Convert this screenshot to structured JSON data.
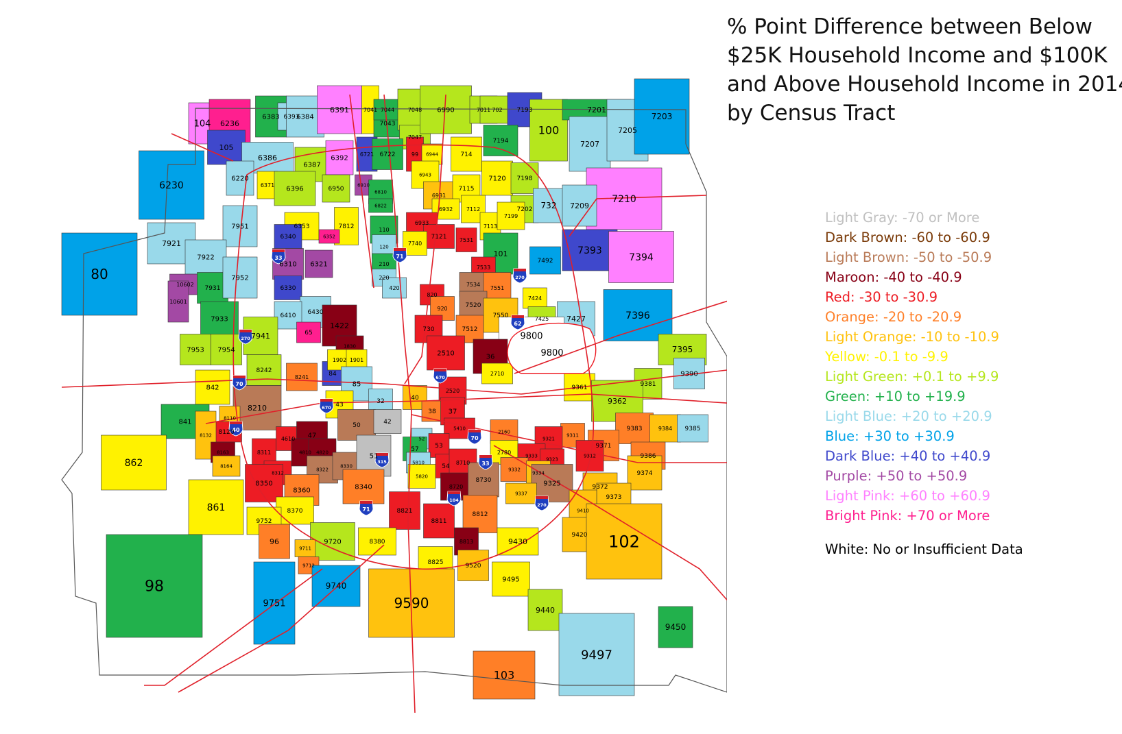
{
  "title_lines": [
    "% Point Difference between Below",
    "$25K Household Income and $100K",
    "and Above Household Income in 2014",
    "by Census Tract"
  ],
  "legend": [
    {
      "label": "Light Gray: -70 or More",
      "color": "#c0c0c0"
    },
    {
      "label": "Dark Brown: -60 to -60.9",
      "color": "#7a3a08"
    },
    {
      "label": "Light Brown: -50 to -50.9",
      "color": "#b97a57"
    },
    {
      "label": "Maroon: -40 to -40.9",
      "color": "#880015"
    },
    {
      "label": "Red: -30 to -30.9",
      "color": "#ed1c24"
    },
    {
      "label": "Orange: -20 to -20.9",
      "color": "#ff7f27"
    },
    {
      "label": "Light Orange: -10 to -10.9",
      "color": "#ffc20e"
    },
    {
      "label": "Yellow: -0.1 to -9.9",
      "color": "#fff200"
    },
    {
      "label": "Light Green: +0.1 to +9.9",
      "color": "#b5e61d"
    },
    {
      "label": "Green: +10 to +19.9",
      "color": "#22b14c"
    },
    {
      "label": "Light Blue: +20 to +20.9",
      "color": "#99d9ea"
    },
    {
      "label": "Blue: +30 to +30.9",
      "color": "#00a2e8"
    },
    {
      "label": "Dark Blue: +40 to +40.9",
      "color": "#3f48cc"
    },
    {
      "label": "Purple: +50 to +50.9",
      "color": "#a349a4"
    },
    {
      "label": "Light Pink: +60 to +60.9",
      "color": "#ff80ff"
    },
    {
      "label": "Bright Pink: +70 or More",
      "color": "#ff1f8f"
    }
  ],
  "legend_white": {
    "label": "White: No or Insufficient Data",
    "color": "#000000"
  },
  "highways": [
    "70",
    "71",
    "270",
    "670",
    "315",
    "33",
    "62",
    "104"
  ],
  "tracts": [
    {
      "id": "104",
      "c": "#ff80ff"
    },
    {
      "id": "6236",
      "c": "#ff1f8f"
    },
    {
      "id": "6383",
      "c": "#22b14c"
    },
    {
      "id": "6393",
      "c": "#99d9ea"
    },
    {
      "id": "6384",
      "c": "#99d9ea"
    },
    {
      "id": "6391",
      "c": "#ff80ff"
    },
    {
      "id": "7041",
      "c": "#fff200"
    },
    {
      "id": "7043",
      "c": "#22b14c"
    },
    {
      "id": "7044",
      "c": "#22b14c"
    },
    {
      "id": "7048",
      "c": "#b5e61d"
    },
    {
      "id": "7047",
      "c": "#b5e61d"
    },
    {
      "id": "6990",
      "c": "#b5e61d"
    },
    {
      "id": "7011",
      "c": "#b5e61d"
    },
    {
      "id": "702",
      "c": "#b5e61d"
    },
    {
      "id": "7193",
      "c": "#3f48cc"
    },
    {
      "id": "7194",
      "c": "#22b14c"
    },
    {
      "id": "100",
      "c": "#b5e61d"
    },
    {
      "id": "7201",
      "c": "#22b14c"
    },
    {
      "id": "7207",
      "c": "#99d9ea"
    },
    {
      "id": "7205",
      "c": "#99d9ea"
    },
    {
      "id": "7203",
      "c": "#00a2e8"
    },
    {
      "id": "105",
      "c": "#3f48cc"
    },
    {
      "id": "6386",
      "c": "#99d9ea"
    },
    {
      "id": "6387",
      "c": "#b5e61d"
    },
    {
      "id": "6392",
      "c": "#ff80ff"
    },
    {
      "id": "6721",
      "c": "#3f48cc"
    },
    {
      "id": "6722",
      "c": "#22b14c"
    },
    {
      "id": "99",
      "c": "#ed1c24"
    },
    {
      "id": "6944",
      "c": "#fff200"
    },
    {
      "id": "714",
      "c": "#fff200"
    },
    {
      "id": "7120",
      "c": "#fff200"
    },
    {
      "id": "7198",
      "c": "#b5e61d"
    },
    {
      "id": "6230",
      "c": "#00a2e8"
    },
    {
      "id": "6220",
      "c": "#99d9ea"
    },
    {
      "id": "6371",
      "c": "#fff200"
    },
    {
      "id": "6396",
      "c": "#b5e61d"
    },
    {
      "id": "6950",
      "c": "#b5e61d"
    },
    {
      "id": "6910",
      "c": "#a349a4"
    },
    {
      "id": "6810",
      "c": "#22b14c"
    },
    {
      "id": "6822",
      "c": "#22b14c"
    },
    {
      "id": "6943",
      "c": "#fff200"
    },
    {
      "id": "6931",
      "c": "#ffc20e"
    },
    {
      "id": "7115",
      "c": "#fff200"
    },
    {
      "id": "7210",
      "c": "#ff80ff"
    },
    {
      "id": "7202",
      "c": "#b5e61d"
    },
    {
      "id": "732",
      "c": "#99d9ea"
    },
    {
      "id": "7209",
      "c": "#99d9ea"
    },
    {
      "id": "6353",
      "c": "#fff200"
    },
    {
      "id": "7812",
      "c": "#fff200"
    },
    {
      "id": "6932",
      "c": "#fff200"
    },
    {
      "id": "7112",
      "c": "#fff200"
    },
    {
      "id": "7113",
      "c": "#fff200"
    },
    {
      "id": "7199",
      "c": "#fff200"
    },
    {
      "id": "7921",
      "c": "#99d9ea"
    },
    {
      "id": "7951",
      "c": "#99d9ea"
    },
    {
      "id": "6340",
      "c": "#3f48cc"
    },
    {
      "id": "6352",
      "c": "#ff1f8f"
    },
    {
      "id": "110",
      "c": "#22b14c"
    },
    {
      "id": "6933",
      "c": "#ed1c24"
    },
    {
      "id": "7121",
      "c": "#ed1c24"
    },
    {
      "id": "101",
      "c": "#22b14c"
    },
    {
      "id": "7393",
      "c": "#3f48cc"
    },
    {
      "id": "7394",
      "c": "#ff80ff"
    },
    {
      "id": "7922",
      "c": "#99d9ea"
    },
    {
      "id": "6310",
      "c": "#a349a4"
    },
    {
      "id": "6321",
      "c": "#a349a4"
    },
    {
      "id": "120",
      "c": "#99d9ea"
    },
    {
      "id": "7740",
      "c": "#fff200"
    },
    {
      "id": "7531",
      "c": "#ed1c24"
    },
    {
      "id": "7492",
      "c": "#00a2e8"
    },
    {
      "id": "80",
      "c": "#00a2e8"
    },
    {
      "id": "10602",
      "c": "#a349a4"
    },
    {
      "id": "7931",
      "c": "#22b14c"
    },
    {
      "id": "7952",
      "c": "#99d9ea"
    },
    {
      "id": "210",
      "c": "#22b14c"
    },
    {
      "id": "220",
      "c": "#99d9ea"
    },
    {
      "id": "420",
      "c": "#99d9ea"
    },
    {
      "id": "7533",
      "c": "#ed1c24"
    },
    {
      "id": "7534",
      "c": "#b97a57"
    },
    {
      "id": "7551",
      "c": "#ff7f27"
    },
    {
      "id": "7424",
      "c": "#fff200"
    },
    {
      "id": "10601",
      "c": "#a349a4"
    },
    {
      "id": "6330",
      "c": "#3f48cc"
    },
    {
      "id": "6430",
      "c": "#99d9ea"
    },
    {
      "id": "820",
      "c": "#ed1c24"
    },
    {
      "id": "920",
      "c": "#ff7f27"
    },
    {
      "id": "7520",
      "c": "#b97a57"
    },
    {
      "id": "7550",
      "c": "#ffc20e"
    },
    {
      "id": "7425",
      "c": "#b5e61d"
    },
    {
      "id": "7427",
      "c": "#99d9ea"
    },
    {
      "id": "7396",
      "c": "#00a2e8"
    },
    {
      "id": "7933",
      "c": "#22b14c"
    },
    {
      "id": "6410",
      "c": "#99d9ea"
    },
    {
      "id": "65",
      "c": "#ff1f8f"
    },
    {
      "id": "1422",
      "c": "#880015"
    },
    {
      "id": "730",
      "c": "#ed1c24"
    },
    {
      "id": "7512",
      "c": "#ff7f27"
    },
    {
      "id": "9800",
      "c": "#ffffff"
    },
    {
      "id": "7941",
      "c": "#b5e61d"
    },
    {
      "id": "7953",
      "c": "#b5e61d"
    },
    {
      "id": "7954",
      "c": "#b5e61d"
    },
    {
      "id": "1830",
      "c": "#880015"
    },
    {
      "id": "2510",
      "c": "#ed1c24"
    },
    {
      "id": "36",
      "c": "#880015"
    },
    {
      "id": "7395",
      "c": "#b5e61d"
    },
    {
      "id": "8242",
      "c": "#b5e61d"
    },
    {
      "id": "8241",
      "c": "#ff7f27"
    },
    {
      "id": "84",
      "c": "#3f48cc"
    },
    {
      "id": "1902",
      "c": "#fff200"
    },
    {
      "id": "1901",
      "c": "#fff200"
    },
    {
      "id": "2710",
      "c": "#fff200"
    },
    {
      "id": "9390",
      "c": "#99d9ea"
    },
    {
      "id": "842",
      "c": "#fff200"
    },
    {
      "id": "85",
      "c": "#99d9ea"
    },
    {
      "id": "2520",
      "c": "#ed1c24"
    },
    {
      "id": "9361",
      "c": "#fff200"
    },
    {
      "id": "9381",
      "c": "#b5e61d"
    },
    {
      "id": "9362",
      "c": "#b5e61d"
    },
    {
      "id": "8210",
      "c": "#b97a57"
    },
    {
      "id": "43",
      "c": "#fff200"
    },
    {
      "id": "32",
      "c": "#99d9ea"
    },
    {
      "id": "40",
      "c": "#ffc20e"
    },
    {
      "id": "38",
      "c": "#ff7f27"
    },
    {
      "id": "37",
      "c": "#ed1c24"
    },
    {
      "id": "841",
      "c": "#22b14c"
    },
    {
      "id": "8110",
      "c": "#ffc20e"
    },
    {
      "id": "8120",
      "c": "#ed1c24"
    },
    {
      "id": "4610",
      "c": "#ed1c24"
    },
    {
      "id": "47",
      "c": "#880015"
    },
    {
      "id": "50",
      "c": "#b97a57"
    },
    {
      "id": "42",
      "c": "#c0c0c0"
    },
    {
      "id": "5410",
      "c": "#ed1c24"
    },
    {
      "id": "2160",
      "c": "#ff7f27"
    },
    {
      "id": "9311",
      "c": "#ff7f27"
    },
    {
      "id": "9383",
      "c": "#ff7f27"
    },
    {
      "id": "9384",
      "c": "#ffc20e"
    },
    {
      "id": "9385",
      "c": "#99d9ea"
    },
    {
      "id": "8132",
      "c": "#ffc20e"
    },
    {
      "id": "8163",
      "c": "#880015"
    },
    {
      "id": "8311",
      "c": "#ed1c24"
    },
    {
      "id": "4810",
      "c": "#880015"
    },
    {
      "id": "4820",
      "c": "#880015"
    },
    {
      "id": "52",
      "c": "#99d9ea"
    },
    {
      "id": "53",
      "c": "#ed1c24"
    },
    {
      "id": "9321",
      "c": "#ed1c24"
    },
    {
      "id": "9371",
      "c": "#ff7f27"
    },
    {
      "id": "9386",
      "c": "#ff7f27"
    },
    {
      "id": "862",
      "c": "#fff200"
    },
    {
      "id": "8164",
      "c": "#ffc20e"
    },
    {
      "id": "8312",
      "c": "#ed1c24"
    },
    {
      "id": "8322",
      "c": "#b97a57"
    },
    {
      "id": "8330",
      "c": "#b97a57"
    },
    {
      "id": "51",
      "c": "#c0c0c0"
    },
    {
      "id": "57",
      "c": "#22b14c"
    },
    {
      "id": "5810",
      "c": "#99d9ea"
    },
    {
      "id": "54",
      "c": "#ed1c24"
    },
    {
      "id": "8710",
      "c": "#ed1c24"
    },
    {
      "id": "2780",
      "c": "#fff200"
    },
    {
      "id": "9333",
      "c": "#ed1c24"
    },
    {
      "id": "9323",
      "c": "#ed1c24"
    },
    {
      "id": "9312",
      "c": "#ed1c24"
    },
    {
      "id": "9332",
      "c": "#ff7f27"
    },
    {
      "id": "9334",
      "c": "#ffc20e"
    },
    {
      "id": "9374",
      "c": "#ffc20e"
    },
    {
      "id": "8350",
      "c": "#ed1c24"
    },
    {
      "id": "8360",
      "c": "#ff7f27"
    },
    {
      "id": "8340",
      "c": "#ff7f27"
    },
    {
      "id": "5820",
      "c": "#fff200"
    },
    {
      "id": "8720",
      "c": "#880015"
    },
    {
      "id": "8730",
      "c": "#b97a57"
    },
    {
      "id": "9325",
      "c": "#b97a57"
    },
    {
      "id": "9372",
      "c": "#ffc20e"
    },
    {
      "id": "861",
      "c": "#fff200"
    },
    {
      "id": "8370",
      "c": "#fff200"
    },
    {
      "id": "9337",
      "c": "#ffc20e"
    },
    {
      "id": "9373",
      "c": "#ffc20e"
    },
    {
      "id": "9752",
      "c": "#fff200"
    },
    {
      "id": "8821",
      "c": "#ed1c24"
    },
    {
      "id": "8811",
      "c": "#ed1c24"
    },
    {
      "id": "8812",
      "c": "#ff7f27"
    },
    {
      "id": "9410",
      "c": "#ffc20e"
    },
    {
      "id": "96",
      "c": "#ff7f27"
    },
    {
      "id": "9720",
      "c": "#b5e61d"
    },
    {
      "id": "8380",
      "c": "#fff200"
    },
    {
      "id": "8813",
      "c": "#880015"
    },
    {
      "id": "9430",
      "c": "#fff200"
    },
    {
      "id": "9420",
      "c": "#ffc20e"
    },
    {
      "id": "102",
      "c": "#ffc20e"
    },
    {
      "id": "9711",
      "c": "#ffc20e"
    },
    {
      "id": "9712",
      "c": "#ff7f27"
    },
    {
      "id": "8825",
      "c": "#fff200"
    },
    {
      "id": "9520",
      "c": "#ffc20e"
    },
    {
      "id": "98",
      "c": "#22b14c"
    },
    {
      "id": "9740",
      "c": "#00a2e8"
    },
    {
      "id": "9495",
      "c": "#fff200"
    },
    {
      "id": "9751",
      "c": "#00a2e8"
    },
    {
      "id": "9590",
      "c": "#ffc20e"
    },
    {
      "id": "9440",
      "c": "#b5e61d"
    },
    {
      "id": "9450",
      "c": "#22b14c"
    },
    {
      "id": "9497",
      "c": "#99d9ea"
    },
    {
      "id": "103",
      "c": "#ff7f27"
    }
  ]
}
